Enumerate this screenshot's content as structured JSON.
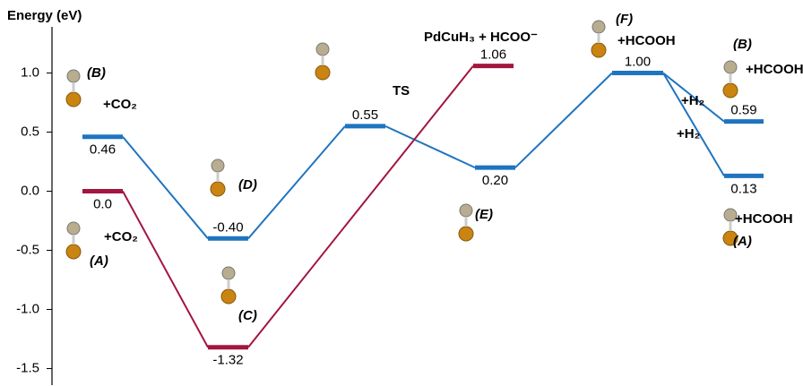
{
  "chart_data": {
    "type": "energy-diagram",
    "y_label": "Energy (eV)",
    "ylim": [
      -1.64,
      1.39
    ],
    "yticks": [
      {
        "value": 1.0,
        "label": "1.0"
      },
      {
        "value": 0.5,
        "label": "0.5"
      },
      {
        "value": 0.0,
        "label": "0.0"
      },
      {
        "value": -0.5,
        "label": "-0.5"
      },
      {
        "value": -1.0,
        "label": "-1.0"
      },
      {
        "value": -1.5,
        "label": "-1.5"
      }
    ],
    "series": [
      {
        "color": "#1f74c0",
        "values": [
          0.46,
          -0.4,
          0.55,
          0.2,
          1.0,
          0.59,
          0.13
        ],
        "value_labels": [
          "0.46",
          "-0.40",
          "0.55",
          "0.20",
          "1.00",
          "0.59",
          "0.13"
        ]
      },
      {
        "color": "#a3163f",
        "values": [
          0.0,
          -1.32,
          1.06
        ],
        "value_labels": [
          "0.0",
          "-1.32",
          "1.06"
        ]
      }
    ],
    "annotations": [
      "(B)",
      "+CO₂",
      "(D)",
      "TS",
      "PdCuH₃ + HCOO⁻",
      "(F)",
      "+HCOOH",
      "(B)",
      "+HCOOH",
      "+H₂",
      "+H₂",
      "(A)",
      "+CO₂",
      "(C)",
      "(E)",
      "+HCOOH",
      "(A)"
    ]
  }
}
